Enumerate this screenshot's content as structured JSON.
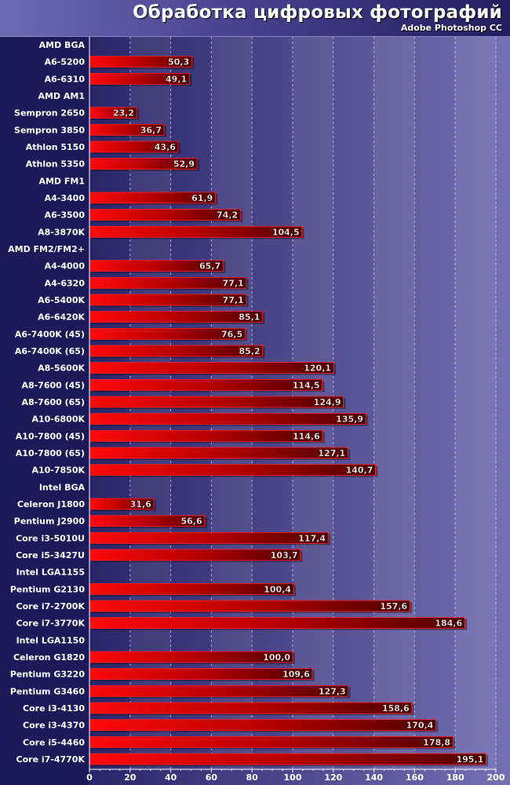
{
  "chart_data": {
    "type": "bar",
    "orientation": "horizontal",
    "title": "Обработка цифровых фотографий",
    "subtitle": "Adobe Photoshop CC",
    "xlim": [
      0,
      200
    ],
    "xticks": [
      0,
      20,
      40,
      60,
      80,
      100,
      120,
      140,
      160,
      180,
      200
    ],
    "grid": true,
    "bar_color": "#e80000",
    "categories": [
      "AMD BGA",
      "A6-5200",
      "A6-6310",
      "AMD AM1",
      "Sempron 2650",
      "Sempron 3850",
      "Athlon 5150",
      "Athlon 5350",
      "AMD FM1",
      "A4-3400",
      "A6-3500",
      "A8-3870K",
      "AMD FM2/FM2+",
      "A4-4000",
      "A4-6320",
      "A6-5400K",
      "A6-6420K",
      "A6-7400K (45)",
      "A6-7400K (65)",
      "A8-5600K",
      "A8-7600 (45)",
      "A8-7600 (65)",
      "A10-6800K",
      "A10-7800 (45)",
      "A10-7800 (65)",
      "A10-7850K",
      "Intel BGA",
      "Celeron J1800",
      "Pentium J2900",
      "Core i3-5010U",
      "Core i5-3427U",
      "Intel LGA1155",
      "Pentium G2130",
      "Core i7-2700K",
      "Core i7-3770K",
      "Intel LGA1150",
      "Celeron G1820",
      "Pentium G3220",
      "Pentium G3460",
      "Core i3-4130",
      "Core i3-4370",
      "Core i5-4460",
      "Core i7-4770K"
    ],
    "values": [
      null,
      50.3,
      49.1,
      null,
      23.2,
      36.7,
      43.6,
      52.9,
      null,
      61.9,
      74.2,
      104.5,
      null,
      65.7,
      77.1,
      77.1,
      85.1,
      76.5,
      85.2,
      120.1,
      114.5,
      124.9,
      135.9,
      114.6,
      127.1,
      140.7,
      null,
      31.6,
      56.6,
      117.4,
      103.7,
      null,
      100.4,
      157.6,
      184.6,
      null,
      100.0,
      109.6,
      127.3,
      158.6,
      170.4,
      178.8,
      195.1
    ],
    "value_labels": [
      "",
      "50,3",
      "49,1",
      "",
      "23,2",
      "36,7",
      "43,6",
      "52,9",
      "",
      "61,9",
      "74,2",
      "104,5",
      "",
      "65,7",
      "77,1",
      "77,1",
      "85,1",
      "76,5",
      "85,2",
      "120,1",
      "114,5",
      "124,9",
      "135,9",
      "114,6",
      "127,1",
      "140,7",
      "",
      "31,6",
      "56,6",
      "117,4",
      "103,7",
      "",
      "100,4",
      "157,6",
      "184,6",
      "",
      "100,0",
      "109,6",
      "127,3",
      "158,6",
      "170,4",
      "178,8",
      "195,1"
    ]
  }
}
